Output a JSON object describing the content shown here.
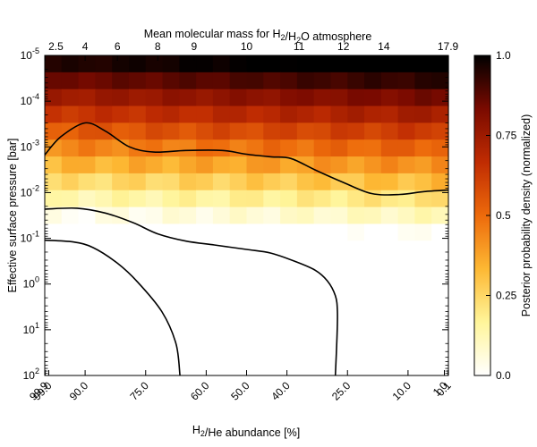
{
  "chart_data": {
    "type": "heatmap",
    "top_axis": {
      "label": "Mean molecular mass for H2/H2O atmosphere",
      "ticks": [
        "2.5",
        "4",
        "6",
        "8",
        "9",
        "10",
        "11",
        "12",
        "14",
        "17.9"
      ],
      "tick_positions_percent": [
        99.9,
        90.0,
        82.0,
        72.0,
        63.0,
        50.0,
        37.0,
        26.0,
        16.0,
        0.1
      ]
    },
    "x_axis": {
      "label": "H2/He abundance [%]",
      "unit": "%",
      "range": [
        100,
        0
      ],
      "ticks": [
        "99.9",
        "99.0",
        "90.0",
        "75.0",
        "60.0",
        "50.0",
        "40.0",
        "25.0",
        "10.0",
        "1.0",
        "0.1"
      ],
      "tick_values": [
        99.9,
        99.0,
        90.0,
        75.0,
        60.0,
        50.0,
        40.0,
        25.0,
        10.0,
        1.0,
        0.1
      ]
    },
    "y_axis": {
      "label": "Effective surface pressure [bar]",
      "scale": "log",
      "range_bar": [
        1e-05,
        100
      ],
      "inverted": true,
      "ticks": [
        {
          "base": "10",
          "exp": "-5",
          "value": 1e-05
        },
        {
          "base": "10",
          "exp": "-4",
          "value": 0.0001
        },
        {
          "base": "10",
          "exp": "-3",
          "value": 0.001
        },
        {
          "base": "10",
          "exp": "-2",
          "value": 0.01
        },
        {
          "base": "10",
          "exp": "-1",
          "value": 0.1
        },
        {
          "base": "10",
          "exp": "0",
          "value": 1
        },
        {
          "base": "10",
          "exp": "1",
          "value": 10
        },
        {
          "base": "10",
          "exp": "2",
          "value": 100
        }
      ]
    },
    "colorbar": {
      "label": "Posterior probability density (normalized)",
      "ticks": [
        "0.0",
        "0.25",
        "0.5",
        "0.75",
        "1.0"
      ],
      "tick_values": [
        0.0,
        0.25,
        0.5,
        0.75,
        1.0
      ],
      "colormap": "afmhot_r",
      "colors": [
        "#ffffff",
        "#fff59a",
        "#fdb833",
        "#ed6a0b",
        "#c02c02",
        "#7a0a00",
        "#000000"
      ]
    },
    "grid": {
      "columns": 24,
      "rows": 19,
      "density_model": "decreasing with pressure: ~1.0 at 1e-5 bar, ~0.5 near 1e-2 bar, ~0.1 near 1 bar, ~0 at 100 bar; slightly higher toward low H2/He abundance"
    },
    "contours": [
      {
        "name": "outer",
        "points": [
          [
            100,
            0.0015
          ],
          [
            96,
            0.0006
          ],
          [
            90,
            0.0003
          ],
          [
            85,
            0.00045
          ],
          [
            79,
            0.001
          ],
          [
            73,
            0.0013
          ],
          [
            65,
            0.0012
          ],
          [
            56,
            0.0012
          ],
          [
            50,
            0.00145
          ],
          [
            44,
            0.00165
          ],
          [
            39,
            0.0018
          ],
          [
            33,
            0.0032
          ],
          [
            26,
            0.006
          ],
          [
            19,
            0.0105
          ],
          [
            12,
            0.011
          ],
          [
            6,
            0.0095
          ],
          [
            0,
            0.0088
          ]
        ]
      },
      {
        "name": "middle",
        "points": [
          [
            100,
            0.023
          ],
          [
            92,
            0.022
          ],
          [
            85,
            0.028
          ],
          [
            78,
            0.046
          ],
          [
            72,
            0.08
          ],
          [
            65,
            0.115
          ],
          [
            58,
            0.14
          ],
          [
            50,
            0.175
          ],
          [
            44,
            0.21
          ],
          [
            38,
            0.32
          ],
          [
            33,
            0.5
          ],
          [
            30,
            0.85
          ],
          [
            28,
            1.8
          ],
          [
            27.5,
            4.0
          ],
          [
            27.6,
            15
          ],
          [
            28,
            100
          ]
        ]
      },
      {
        "name": "inner",
        "points": [
          [
            100,
            0.11
          ],
          [
            93,
            0.12
          ],
          [
            88,
            0.16
          ],
          [
            82,
            0.35
          ],
          [
            77,
            0.9
          ],
          [
            71,
            4.0
          ],
          [
            67.5,
            20
          ],
          [
            66.5,
            100
          ]
        ]
      }
    ]
  }
}
